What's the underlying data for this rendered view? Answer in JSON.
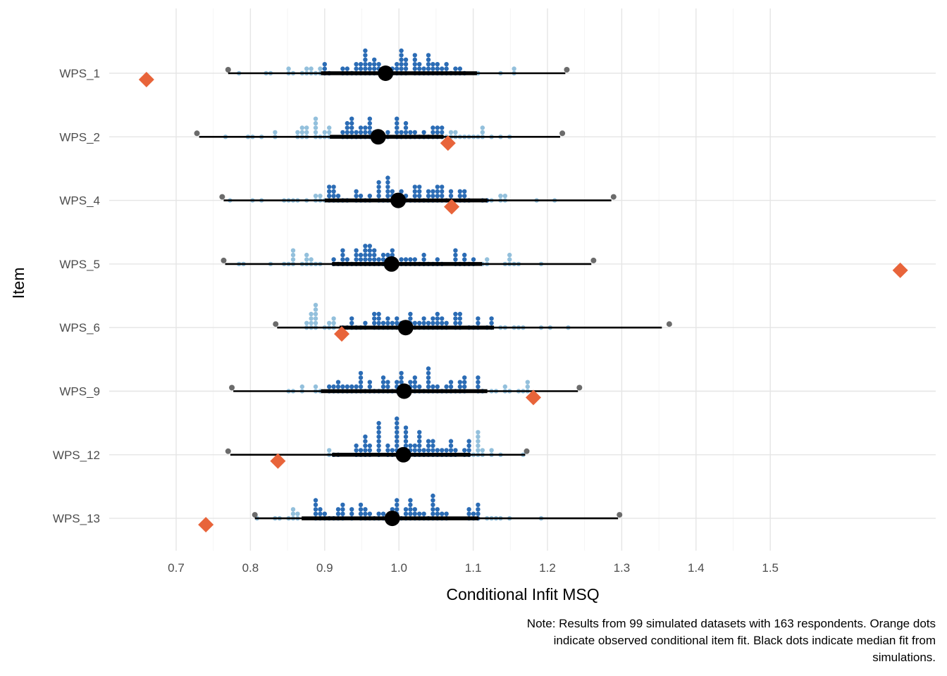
{
  "chart_data": {
    "type": "scatter",
    "xlabel": "Conditional Infit MSQ",
    "ylabel": "Item",
    "x_ticks": [
      0.7,
      0.8,
      0.9,
      1.0,
      1.1,
      1.2,
      1.3,
      1.4,
      1.5
    ],
    "x_tick_labels": [
      "0.7",
      "0.8",
      "0.9",
      "1.0",
      "1.1",
      "1.2",
      "1.3",
      "1.4",
      "1.5"
    ],
    "xlim": [
      0.61,
      1.72
    ],
    "grid": true,
    "note_lines": [
      "Note: Results from 99 simulated datasets with 163 respondents. Orange dots",
      "indicate observed conditional item fit. Black dots indicate median fit from",
      "simulations."
    ],
    "colors": {
      "observed": "#e8643a",
      "median": "#000000",
      "inner_dots": "#2b6cb5",
      "outer_dots": "#93c0dc",
      "extreme_dots": "#6b6b6b",
      "grid": "#e5e5e5"
    },
    "items": [
      {
        "name": "WPS_1",
        "min": 0.77,
        "p05": 0.77,
        "p33": 0.895,
        "median": 0.982,
        "p67": 1.105,
        "p95": 1.224,
        "max": 1.226,
        "observed": 0.66
      },
      {
        "name": "WPS_2",
        "min": 0.728,
        "p05": 0.731,
        "p33": 0.907,
        "median": 0.972,
        "p67": 1.06,
        "p95": 1.217,
        "max": 1.22,
        "observed": 1.066
      },
      {
        "name": "WPS_4",
        "min": 0.762,
        "p05": 0.764,
        "p33": 0.9,
        "median": 0.999,
        "p67": 1.119,
        "p95": 1.286,
        "max": 1.289,
        "observed": 1.071
      },
      {
        "name": "WPS_5",
        "min": 0.764,
        "p05": 0.766,
        "p33": 0.91,
        "median": 0.99,
        "p67": 1.112,
        "p95": 1.259,
        "max": 1.262,
        "observed": 1.675
      },
      {
        "name": "WPS_6",
        "min": 0.834,
        "p05": 0.836,
        "p33": 0.92,
        "median": 1.009,
        "p67": 1.128,
        "p95": 1.354,
        "max": 1.364,
        "observed": 0.923
      },
      {
        "name": "WPS_9",
        "min": 0.775,
        "p05": 0.777,
        "p33": 0.895,
        "median": 1.007,
        "p67": 1.119,
        "p95": 1.241,
        "max": 1.243,
        "observed": 1.181
      },
      {
        "name": "WPS_12",
        "min": 0.77,
        "p05": 0.773,
        "p33": 0.91,
        "median": 1.006,
        "p67": 1.096,
        "p95": 1.17,
        "max": 1.172,
        "observed": 0.837
      },
      {
        "name": "WPS_13",
        "min": 0.806,
        "p05": 0.806,
        "p33": 0.869,
        "median": 0.991,
        "p67": 1.107,
        "p95": 1.295,
        "max": 1.297,
        "observed": 0.74
      }
    ]
  }
}
